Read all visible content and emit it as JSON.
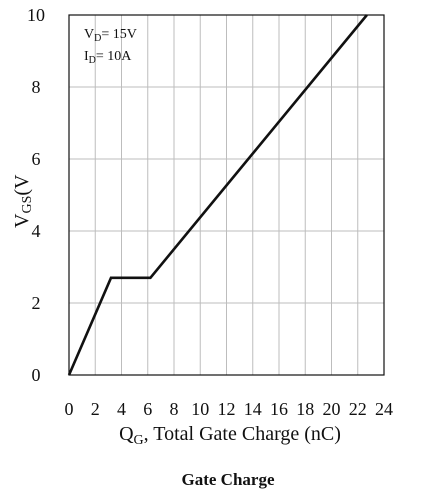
{
  "chart_data": {
    "type": "line",
    "title": "Gate Charge",
    "xlabel": {
      "main": "Q",
      "sub": "G",
      "rest": ", Total Gate Charge (nC)"
    },
    "ylabel": {
      "main": "V",
      "sub": "GS",
      "rest": "(V"
    },
    "annotations": [
      {
        "main": "V",
        "sub": "D",
        "rest": "= 15V"
      },
      {
        "main": "I",
        "sub": "D",
        "rest": "= 10A"
      }
    ],
    "xlim": [
      0,
      24
    ],
    "ylim": [
      0,
      10
    ],
    "x_ticks": [
      0,
      2,
      4,
      6,
      8,
      10,
      12,
      14,
      16,
      18,
      20,
      22,
      24
    ],
    "y_ticks": [
      0,
      2,
      4,
      6,
      8,
      10
    ],
    "x_grid": [
      2,
      4,
      6,
      8,
      10,
      12,
      14,
      16,
      18,
      20,
      22
    ],
    "y_grid": [
      2,
      4,
      6,
      8
    ],
    "grid": true,
    "series": [
      {
        "points": [
          {
            "x": 0,
            "y": 0
          },
          {
            "x": 3.2,
            "y": 2.7
          },
          {
            "x": 6.2,
            "y": 2.7
          },
          {
            "x": 22.7,
            "y": 10
          }
        ]
      }
    ]
  }
}
